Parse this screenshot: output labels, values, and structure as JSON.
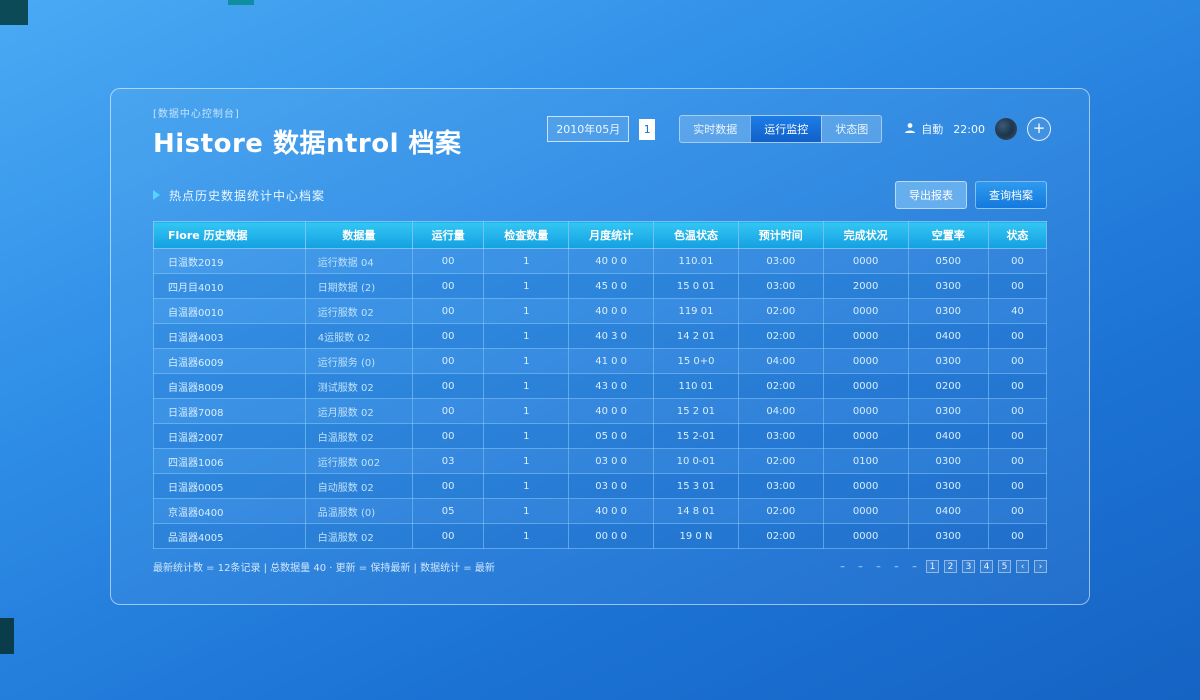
{
  "header": {
    "system_label": "[数据中心控制台]",
    "title": "Histore 数据ntrol 档案",
    "date_field": {
      "value": "2010年05月",
      "page": "1"
    },
    "segments": [
      {
        "label": "实时数据"
      },
      {
        "label": "运行监控"
      },
      {
        "label": "状态图"
      }
    ],
    "active_segment": 1,
    "user_label": "自動",
    "time_label": "22:00",
    "add_label": "+"
  },
  "section": {
    "title": "热点历史数据统计中心档案",
    "export_button": "导出报表",
    "query_button": "查询档案"
  },
  "table": {
    "columns": [
      "Flore 历史数据",
      "数据量",
      "运行量",
      "检查数量",
      "月度统计",
      "色温状态",
      "预计时间",
      "完成状况",
      "空置率",
      "状态"
    ],
    "rows": [
      [
        "日温数2019",
        "运行数据 04",
        "00",
        "1",
        "40 0 0",
        "110.01",
        "03:00",
        "0000",
        "0500",
        "00"
      ],
      [
        "四月目4010",
        "日期数据 (2)",
        "00",
        "1",
        "45 0 0",
        "15 0 01",
        "03:00",
        "2000",
        "0300",
        "00"
      ],
      [
        "自温器0010",
        "运行服数 02",
        "00",
        "1",
        "40 0 0",
        "119 01",
        "02:00",
        "0000",
        "0300",
        "40"
      ],
      [
        "日温器4003",
        "4运服数 02",
        "00",
        "1",
        "40 3 0",
        "14 2 01",
        "02:00",
        "0000",
        "0400",
        "00"
      ],
      [
        "白温器6009",
        "运行服务 (0)",
        "00",
        "1",
        "41 0 0",
        "15 0+0",
        "04:00",
        "0000",
        "0300",
        "00"
      ],
      [
        "自温器8009",
        "测试服数 02",
        "00",
        "1",
        "43 0 0",
        "110 01",
        "02:00",
        "0000",
        "0200",
        "00"
      ],
      [
        "日温器7008",
        "运月服数 02",
        "00",
        "1",
        "40 0 0",
        "15 2 01",
        "04:00",
        "0000",
        "0300",
        "00"
      ],
      [
        "日温器2007",
        "白温服数 02",
        "00",
        "1",
        "05 0 0",
        "15 2-01",
        "03:00",
        "0000",
        "0400",
        "00"
      ],
      [
        "四温器1006",
        "运行服数 002",
        "03",
        "1",
        "03 0 0",
        "10 0-01",
        "02:00",
        "0100",
        "0300",
        "00"
      ],
      [
        "日温器0005",
        "自动服数 02",
        "00",
        "1",
        "03 0 0",
        "15 3 01",
        "03:00",
        "0000",
        "0300",
        "00"
      ],
      [
        "京温器0400",
        "品温服数 (0)",
        "05",
        "1",
        "40 0 0",
        "14 8 01",
        "02:00",
        "0000",
        "0400",
        "00"
      ],
      [
        "品温器4005",
        "白温服数 02",
        "00",
        "1",
        "00 0 0",
        "19 0 N",
        "02:00",
        "0000",
        "0300",
        "00"
      ]
    ]
  },
  "footer": {
    "summary": "最新统计数 = 12条记录  |  总数据量 40 · 更新 = 保持最新  |  数据统计 = 最新",
    "pagination": [
      "–",
      "–",
      "–",
      "–",
      "–",
      "1",
      "2",
      "3",
      "4",
      "5",
      "‹",
      "›"
    ]
  }
}
